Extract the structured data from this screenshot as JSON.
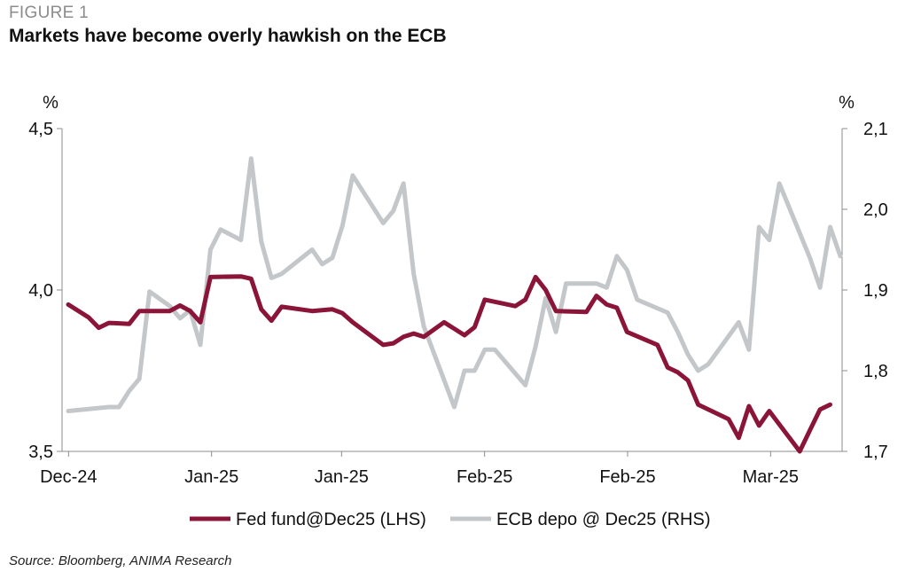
{
  "figure_label": "FIGURE 1",
  "title": "Markets have become overly hawkish on the ECB",
  "source": "Source: Bloomberg, ANIMA Research",
  "chart_data": {
    "type": "line",
    "left_axis": {
      "unit": "%",
      "ylim": [
        3.5,
        4.5
      ],
      "ticks": [
        "3,5",
        "4,0",
        "4,5"
      ],
      "tick_values": [
        3.5,
        4.0,
        4.5
      ]
    },
    "right_axis": {
      "unit": "%",
      "ylim": [
        1.7,
        2.1
      ],
      "ticks": [
        "1,7",
        "1,8",
        "1,9",
        "2,0",
        "2,1"
      ],
      "tick_values": [
        1.7,
        1.8,
        1.9,
        2.0,
        2.1
      ]
    },
    "x_tick_labels": [
      "Dec-24",
      "Jan-25",
      "Jan-25",
      "Feb-25",
      "Feb-25",
      "Mar-25"
    ],
    "x_tick_positions": [
      0,
      11,
      21,
      32,
      43,
      54
    ],
    "x_count": 60,
    "legend_position": "bottom",
    "colors": {
      "fed": "#8b1538",
      "ecb": "#c4c7ca",
      "axis": "#8c8c8c"
    },
    "series": [
      {
        "name": "Fed fund@Dec25 (LHS)",
        "axis": "left",
        "color": "#8b1538",
        "points": [
          [
            0,
            3.955
          ],
          [
            2,
            3.915
          ],
          [
            3,
            3.883
          ],
          [
            4,
            3.898
          ],
          [
            6,
            3.895
          ],
          [
            7,
            3.935
          ],
          [
            8,
            3.935
          ],
          [
            10,
            3.935
          ],
          [
            11,
            3.952
          ],
          [
            12,
            3.935
          ],
          [
            13,
            3.9
          ],
          [
            14,
            4.04
          ],
          [
            17,
            4.042
          ],
          [
            18,
            4.035
          ],
          [
            19,
            3.94
          ],
          [
            20,
            3.905
          ],
          [
            21,
            3.948
          ],
          [
            24,
            3.935
          ],
          [
            26,
            3.94
          ],
          [
            27,
            3.928
          ],
          [
            28,
            3.9
          ],
          [
            31,
            3.83
          ],
          [
            32,
            3.835
          ],
          [
            33,
            3.855
          ],
          [
            34,
            3.865
          ],
          [
            35,
            3.855
          ],
          [
            37,
            3.9
          ],
          [
            38,
            3.88
          ],
          [
            39,
            3.86
          ],
          [
            40,
            3.885
          ],
          [
            41,
            3.97
          ],
          [
            44,
            3.95
          ],
          [
            45,
            3.97
          ],
          [
            46,
            4.04
          ],
          [
            47,
            4.0
          ],
          [
            48,
            3.935
          ],
          [
            51,
            3.932
          ],
          [
            52,
            3.982
          ],
          [
            53,
            3.955
          ],
          [
            54,
            3.945
          ],
          [
            55,
            3.87
          ],
          [
            58,
            3.83
          ],
          [
            59,
            3.76
          ],
          [
            60,
            3.745
          ],
          [
            61,
            3.72
          ],
          [
            62,
            3.645
          ],
          [
            65,
            3.6
          ],
          [
            66,
            3.542
          ],
          [
            67,
            3.64
          ],
          [
            68,
            3.58
          ],
          [
            69,
            3.625
          ],
          [
            72,
            3.5
          ],
          [
            73,
            3.565
          ],
          [
            74,
            3.63
          ],
          [
            75,
            3.645
          ]
        ]
      },
      {
        "name": "ECB depo @ Dec25 (RHS)",
        "axis": "right",
        "color": "#c4c7ca",
        "points": [
          [
            0,
            1.75
          ],
          [
            4,
            1.755
          ],
          [
            5,
            1.755
          ],
          [
            6,
            1.775
          ],
          [
            7,
            1.79
          ],
          [
            8,
            1.898
          ],
          [
            10,
            1.88
          ],
          [
            11,
            1.865
          ],
          [
            12,
            1.875
          ],
          [
            13,
            1.832
          ],
          [
            14,
            1.95
          ],
          [
            15,
            1.975
          ],
          [
            17,
            1.962
          ],
          [
            18,
            2.063
          ],
          [
            19,
            1.96
          ],
          [
            20,
            1.915
          ],
          [
            21,
            1.92
          ],
          [
            24,
            1.95
          ],
          [
            25,
            1.932
          ],
          [
            26,
            1.94
          ],
          [
            27,
            1.98
          ],
          [
            28,
            2.042
          ],
          [
            31,
            1.983
          ],
          [
            32,
            1.998
          ],
          [
            33,
            2.032
          ],
          [
            34,
            1.92
          ],
          [
            35,
            1.855
          ],
          [
            38,
            1.755
          ],
          [
            39,
            1.8
          ],
          [
            40,
            1.8
          ],
          [
            41,
            1.826
          ],
          [
            42,
            1.826
          ],
          [
            45,
            1.782
          ],
          [
            46,
            1.83
          ],
          [
            47,
            1.89
          ],
          [
            48,
            1.848
          ],
          [
            49,
            1.908
          ],
          [
            52,
            1.908
          ],
          [
            53,
            1.903
          ],
          [
            54,
            1.942
          ],
          [
            55,
            1.925
          ],
          [
            56,
            1.888
          ],
          [
            59,
            1.872
          ],
          [
            60,
            1.848
          ],
          [
            61,
            1.82
          ],
          [
            62,
            1.8
          ],
          [
            63,
            1.808
          ],
          [
            66,
            1.86
          ],
          [
            67,
            1.826
          ],
          [
            68,
            1.978
          ],
          [
            69,
            1.962
          ],
          [
            70,
            2.032
          ],
          [
            73,
            1.94
          ],
          [
            74,
            1.903
          ],
          [
            75,
            1.978
          ],
          [
            76,
            1.942
          ]
        ]
      }
    ]
  }
}
